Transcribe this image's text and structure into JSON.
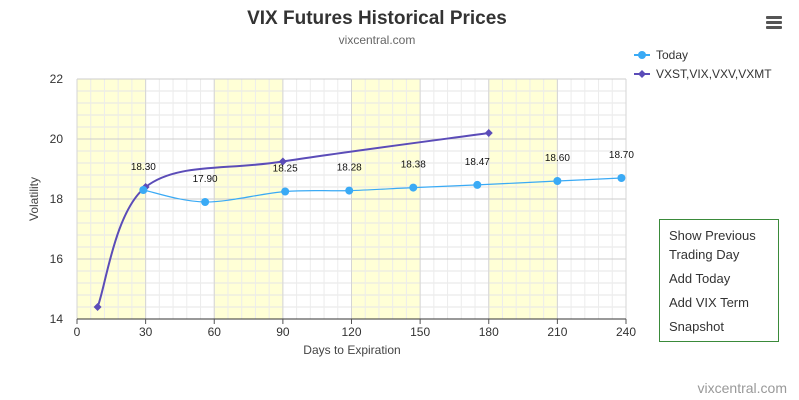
{
  "chart_data": {
    "type": "line",
    "title": "VIX Futures Historical Prices",
    "subtitle": "vixcentral.com",
    "xlabel": "Days to Expiration",
    "ylabel": "Volatility",
    "xlim": [
      0,
      240
    ],
    "ylim": [
      14,
      22
    ],
    "x_ticks": [
      0,
      30,
      60,
      90,
      120,
      150,
      180,
      210,
      240
    ],
    "y_ticks": [
      14,
      16,
      18,
      20,
      22
    ],
    "grid": true,
    "highlight_bands": [
      [
        0,
        30
      ],
      [
        60,
        90
      ],
      [
        120,
        150
      ],
      [
        180,
        210
      ]
    ],
    "legend_position": "top-right",
    "series": [
      {
        "name": "Today",
        "color": "#3aaaf5",
        "marker": "circle",
        "data_labels": true,
        "points": [
          {
            "x": 29,
            "y": 18.3,
            "label": "18.30"
          },
          {
            "x": 56,
            "y": 17.9,
            "label": "17.90"
          },
          {
            "x": 91,
            "y": 18.25,
            "label": "18.25"
          },
          {
            "x": 119,
            "y": 18.28,
            "label": "18.28"
          },
          {
            "x": 147,
            "y": 18.38,
            "label": "18.38"
          },
          {
            "x": 175,
            "y": 18.47,
            "label": "18.47"
          },
          {
            "x": 210,
            "y": 18.6,
            "label": "18.60"
          },
          {
            "x": 238,
            "y": 18.7,
            "label": "18.70"
          }
        ]
      },
      {
        "name": "VXST,VIX,VXV,VXMT",
        "color": "#5b4cb8",
        "marker": "diamond",
        "data_labels": false,
        "points": [
          {
            "x": 9,
            "y": 14.4
          },
          {
            "x": 30,
            "y": 18.4
          },
          {
            "x": 90,
            "y": 19.25
          },
          {
            "x": 180,
            "y": 20.2
          }
        ]
      }
    ]
  },
  "credit": "vixcentral.com",
  "menu_icon": "hamburger-menu-icon",
  "side_panel": {
    "items": [
      {
        "label_line1": "Show Previous",
        "label_line2": "Trading Day"
      },
      {
        "label_line1": "Add Today",
        "label_line2": ""
      },
      {
        "label_line1": "Add VIX Term",
        "label_line2": ""
      },
      {
        "label_line1": "Snapshot",
        "label_line2": ""
      }
    ]
  }
}
